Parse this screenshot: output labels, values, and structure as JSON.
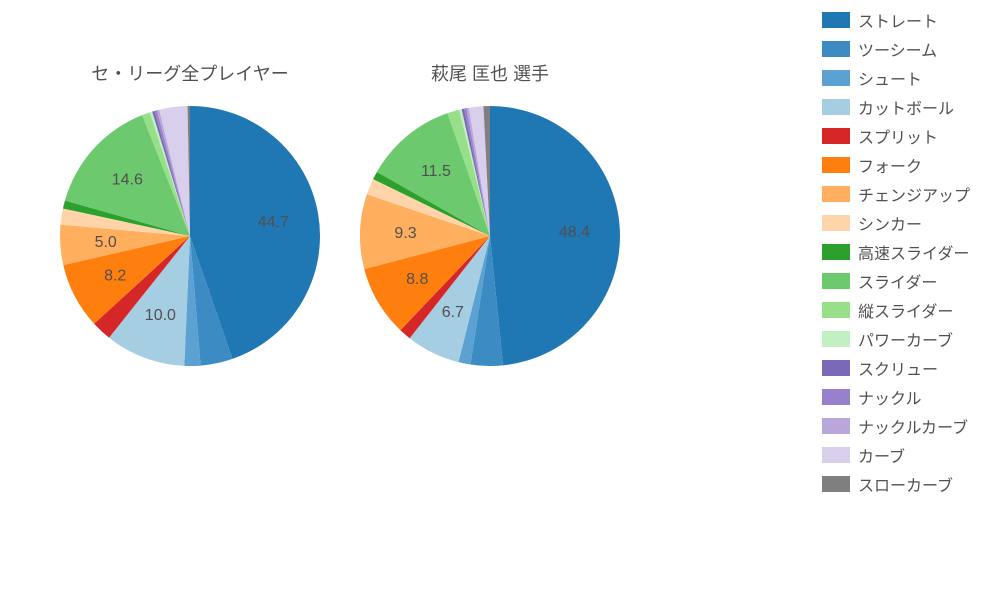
{
  "background_color": "#ffffff",
  "text_color": "#505050",
  "font_family": "sans-serif",
  "title_fontsize": 18,
  "label_fontsize": 16,
  "legend_fontsize": 16,
  "pie_radius": 130,
  "label_threshold": 5.0,
  "label_distance_ratio": 0.65,
  "start_angle_deg": 90,
  "direction": "clockwise",
  "pie_left": {
    "title": "セ・リーグ全プレイヤー",
    "slices": [
      {
        "label": "ストレート",
        "value": 44.7,
        "color": "#1f77b4"
      },
      {
        "label": "ツーシーム",
        "value": 4.0,
        "color": "#3c8cc3"
      },
      {
        "label": "シュート",
        "value": 2.0,
        "color": "#5ba1d2"
      },
      {
        "label": "カットボール",
        "value": 10.0,
        "color": "#a6cee3"
      },
      {
        "label": "スプリット",
        "value": 2.5,
        "color": "#d62728"
      },
      {
        "label": "フォーク",
        "value": 8.2,
        "color": "#ff7f0e"
      },
      {
        "label": "チェンジアップ",
        "value": 5.0,
        "color": "#ffaf5e"
      },
      {
        "label": "シンカー",
        "value": 2.0,
        "color": "#ffd4a8"
      },
      {
        "label": "高速スライダー",
        "value": 1.0,
        "color": "#2ca02c"
      },
      {
        "label": "スライダー",
        "value": 14.6,
        "color": "#6dc96d"
      },
      {
        "label": "縦スライダー",
        "value": 1.0,
        "color": "#98df8a"
      },
      {
        "label": "パワーカーブ",
        "value": 0.3,
        "color": "#c2f0c2"
      },
      {
        "label": "スクリュー",
        "value": 0.3,
        "color": "#7b68b8"
      },
      {
        "label": "ナックル",
        "value": 0.3,
        "color": "#9881cc"
      },
      {
        "label": "ナックルカーブ",
        "value": 0.3,
        "color": "#b9a6db"
      },
      {
        "label": "カーブ",
        "value": 3.5,
        "color": "#d8cfec"
      },
      {
        "label": "スローカーブ",
        "value": 0.3,
        "color": "#7f7f7f"
      }
    ]
  },
  "pie_right": {
    "title": "萩尾 匡也  選手",
    "slices": [
      {
        "label": "ストレート",
        "value": 48.4,
        "color": "#1f77b4"
      },
      {
        "label": "ツーシーム",
        "value": 4.0,
        "color": "#3c8cc3"
      },
      {
        "label": "シュート",
        "value": 1.5,
        "color": "#5ba1d2"
      },
      {
        "label": "カットボール",
        "value": 6.7,
        "color": "#a6cee3"
      },
      {
        "label": "スプリット",
        "value": 1.5,
        "color": "#d62728"
      },
      {
        "label": "フォーク",
        "value": 8.8,
        "color": "#ff7f0e"
      },
      {
        "label": "チェンジアップ",
        "value": 9.3,
        "color": "#ffaf5e"
      },
      {
        "label": "シンカー",
        "value": 2.0,
        "color": "#ffd4a8"
      },
      {
        "label": "高速スライダー",
        "value": 1.0,
        "color": "#2ca02c"
      },
      {
        "label": "スライダー",
        "value": 11.5,
        "color": "#6dc96d"
      },
      {
        "label": "縦スライダー",
        "value": 1.5,
        "color": "#98df8a"
      },
      {
        "label": "パワーカーブ",
        "value": 0.3,
        "color": "#c2f0c2"
      },
      {
        "label": "スクリュー",
        "value": 0.3,
        "color": "#7b68b8"
      },
      {
        "label": "ナックル",
        "value": 0.3,
        "color": "#9881cc"
      },
      {
        "label": "ナックルカーブ",
        "value": 0.3,
        "color": "#b9a6db"
      },
      {
        "label": "カーブ",
        "value": 1.8,
        "color": "#d8cfec"
      },
      {
        "label": "スローカーブ",
        "value": 0.8,
        "color": "#7f7f7f"
      }
    ]
  },
  "legend": {
    "items": [
      {
        "label": "ストレート",
        "color": "#1f77b4"
      },
      {
        "label": "ツーシーム",
        "color": "#3c8cc3"
      },
      {
        "label": "シュート",
        "color": "#5ba1d2"
      },
      {
        "label": "カットボール",
        "color": "#a6cee3"
      },
      {
        "label": "スプリット",
        "color": "#d62728"
      },
      {
        "label": "フォーク",
        "color": "#ff7f0e"
      },
      {
        "label": "チェンジアップ",
        "color": "#ffaf5e"
      },
      {
        "label": "シンカー",
        "color": "#ffd4a8"
      },
      {
        "label": "高速スライダー",
        "color": "#2ca02c"
      },
      {
        "label": "スライダー",
        "color": "#6dc96d"
      },
      {
        "label": "縦スライダー",
        "color": "#98df8a"
      },
      {
        "label": "パワーカーブ",
        "color": "#c2f0c2"
      },
      {
        "label": "スクリュー",
        "color": "#7b68b8"
      },
      {
        "label": "ナックル",
        "color": "#9881cc"
      },
      {
        "label": "ナックルカーブ",
        "color": "#b9a6db"
      },
      {
        "label": "カーブ",
        "color": "#d8cfec"
      },
      {
        "label": "スローカーブ",
        "color": "#7f7f7f"
      }
    ]
  }
}
